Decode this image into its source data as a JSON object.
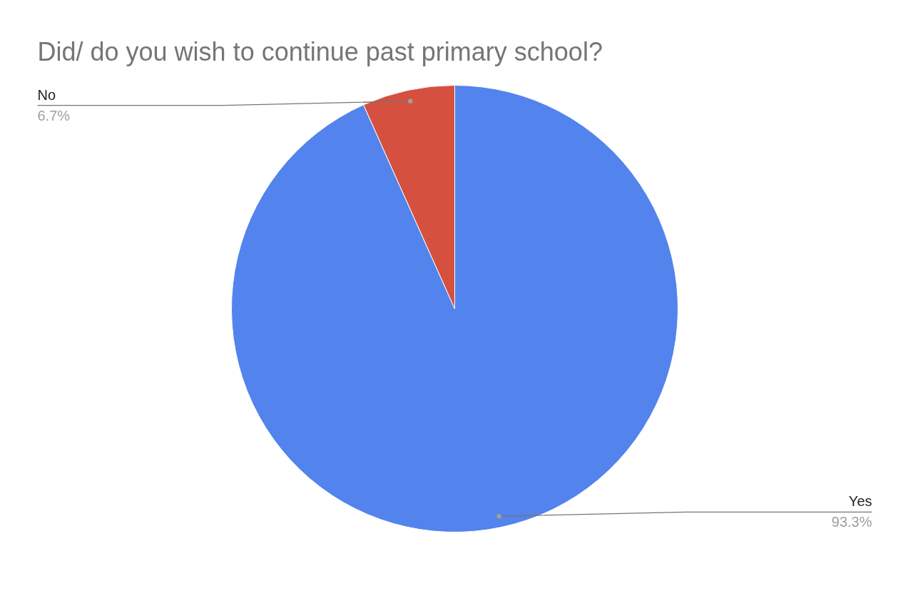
{
  "chart_data": {
    "type": "pie",
    "title": "Did/ do you wish to continue past primary school?",
    "categories": [
      "Yes",
      "No"
    ],
    "values": [
      93.3,
      6.7
    ],
    "colors": [
      "#5383ec",
      "#d5503f"
    ],
    "value_labels": [
      "93.3%",
      "6.7%"
    ]
  }
}
